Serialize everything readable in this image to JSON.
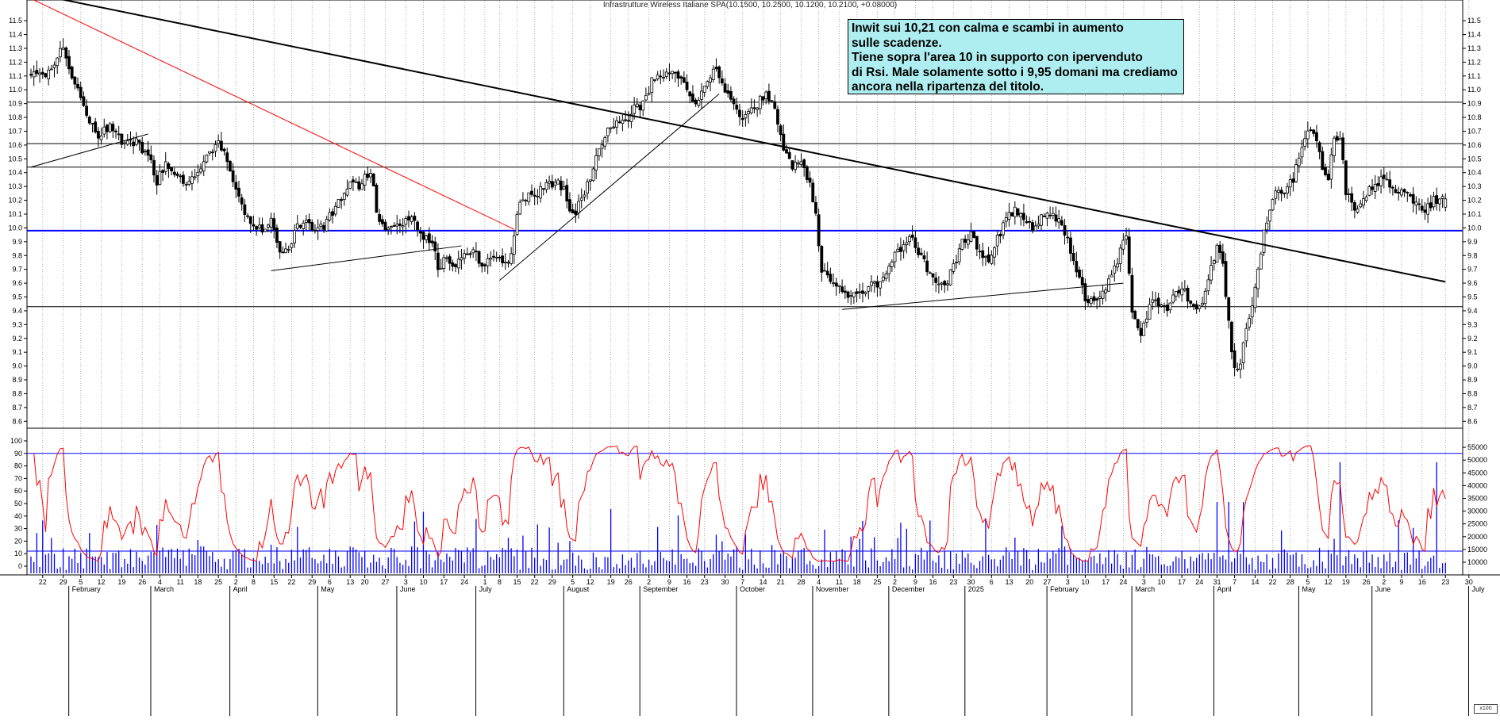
{
  "title": "Infrastrutture Wireless Italiane SPA(10.1500, 10.2500, 10.1200, 10.2100, +0.08000)",
  "annotation": {
    "lines": [
      "Inwit sui 10,21 con calma e scambi in aumento",
      "sulle scadenze.",
      "Tiene sopra l'area 10 in supporto con ipervenduto",
      "di Rsi. Male solamente sotto i 9,95 domani ma crediamo",
      "ancora nella ripartenza del titolo."
    ],
    "background": "#aeeef0"
  },
  "corner_label": "x100",
  "colors": {
    "price_bar": "#000000",
    "trendline": "#000000",
    "red_trendline": "#ff0000",
    "support_line": "#0000ff",
    "rsi": "#ff0000",
    "volume": "#0000ff",
    "grid": "#9a9a9a"
  },
  "chart_data": [
    {
      "type": "ohlc",
      "series_name": "Infrastrutture Wireless Italiane SPA",
      "ylim": [
        8.55,
        11.65
      ],
      "y_ticks": [
        "8.6",
        "8.7",
        "8.8",
        "8.9",
        "9.0",
        "9.1",
        "9.2",
        "9.3",
        "9.4",
        "9.5",
        "9.6",
        "9.7",
        "9.8",
        "9.9",
        "10.0",
        "10.1",
        "10.2",
        "10.3",
        "10.4",
        "10.5",
        "10.6",
        "10.7",
        "10.8",
        "10.9",
        "11.0",
        "11.1",
        "11.2",
        "11.3",
        "11.4",
        "11.5"
      ],
      "last_bar": {
        "open": 10.15,
        "high": 10.25,
        "low": 10.12,
        "close": 10.21,
        "change": 0.08
      },
      "horizontal_levels": [
        10.91,
        10.61,
        10.44,
        9.43
      ],
      "support_level": 9.98,
      "anchors": [
        [
          0,
          11.12
        ],
        [
          4,
          11.1
        ],
        [
          8,
          11.2
        ],
        [
          11,
          11.3
        ],
        [
          14,
          11.1
        ],
        [
          18,
          10.9
        ],
        [
          20,
          10.78
        ],
        [
          23,
          10.68
        ],
        [
          27,
          10.74
        ],
        [
          31,
          10.62
        ],
        [
          34,
          10.64
        ],
        [
          37,
          10.6
        ],
        [
          40,
          10.52
        ],
        [
          43,
          10.34
        ],
        [
          46,
          10.48
        ],
        [
          49,
          10.42
        ],
        [
          52,
          10.3
        ],
        [
          55,
          10.34
        ],
        [
          58,
          10.4
        ],
        [
          61,
          10.56
        ],
        [
          64,
          10.6
        ],
        [
          67,
          10.5
        ],
        [
          70,
          10.3
        ],
        [
          73,
          10.1
        ],
        [
          76,
          10.0
        ],
        [
          79,
          9.98
        ],
        [
          82,
          10.06
        ],
        [
          85,
          9.82
        ],
        [
          88,
          9.86
        ],
        [
          91,
          10.0
        ],
        [
          94,
          10.04
        ],
        [
          97,
          9.98
        ],
        [
          100,
          10.02
        ],
        [
          103,
          10.12
        ],
        [
          106,
          10.22
        ],
        [
          109,
          10.3
        ],
        [
          112,
          10.3
        ],
        [
          114,
          10.36
        ],
        [
          116,
          10.42
        ],
        [
          118,
          10.12
        ],
        [
          121,
          10.0
        ],
        [
          124,
          10.02
        ],
        [
          127,
          10.05
        ],
        [
          130,
          10.06
        ],
        [
          132,
          9.98
        ],
        [
          134,
          9.92
        ],
        [
          137,
          9.9
        ],
        [
          139,
          9.72
        ],
        [
          142,
          9.78
        ],
        [
          145,
          9.74
        ],
        [
          148,
          9.82
        ],
        [
          151,
          9.84
        ],
        [
          154,
          9.74
        ],
        [
          157,
          9.76
        ],
        [
          160,
          9.78
        ],
        [
          163,
          9.74
        ],
        [
          165,
          9.94
        ],
        [
          167,
          10.2
        ],
        [
          170,
          10.24
        ],
        [
          173,
          10.26
        ],
        [
          176,
          10.3
        ],
        [
          179,
          10.32
        ],
        [
          182,
          10.3
        ],
        [
          185,
          10.08
        ],
        [
          188,
          10.2
        ],
        [
          191,
          10.36
        ],
        [
          194,
          10.6
        ],
        [
          197,
          10.7
        ],
        [
          200,
          10.76
        ],
        [
          203,
          10.78
        ],
        [
          206,
          10.86
        ],
        [
          209,
          10.9
        ],
        [
          212,
          11.06
        ],
        [
          215,
          11.1
        ],
        [
          218,
          11.12
        ],
        [
          221,
          11.1
        ],
        [
          224,
          11.0
        ],
        [
          227,
          10.9
        ],
        [
          230,
          11.04
        ],
        [
          233,
          11.16
        ],
        [
          236,
          11.04
        ],
        [
          239,
          10.92
        ],
        [
          242,
          10.8
        ],
        [
          245,
          10.82
        ],
        [
          248,
          10.9
        ],
        [
          251,
          10.96
        ],
        [
          254,
          10.86
        ],
        [
          257,
          10.56
        ],
        [
          260,
          10.46
        ],
        [
          262,
          10.48
        ],
        [
          264,
          10.44
        ],
        [
          266,
          10.3
        ],
        [
          268,
          10.1
        ],
        [
          270,
          9.7
        ],
        [
          273,
          9.64
        ],
        [
          276,
          9.56
        ],
        [
          279,
          9.48
        ],
        [
          282,
          9.54
        ],
        [
          285,
          9.56
        ],
        [
          288,
          9.6
        ],
        [
          291,
          9.62
        ],
        [
          294,
          9.76
        ],
        [
          297,
          9.86
        ],
        [
          300,
          9.94
        ],
        [
          303,
          9.84
        ],
        [
          306,
          9.7
        ],
        [
          309,
          9.6
        ],
        [
          312,
          9.56
        ],
        [
          315,
          9.72
        ],
        [
          318,
          9.9
        ],
        [
          321,
          9.96
        ],
        [
          324,
          9.82
        ],
        [
          327,
          9.76
        ],
        [
          330,
          9.92
        ],
        [
          333,
          10.08
        ],
        [
          336,
          10.12
        ],
        [
          339,
          10.06
        ],
        [
          342,
          10.0
        ],
        [
          345,
          10.08
        ],
        [
          348,
          10.1
        ],
        [
          351,
          10.04
        ],
        [
          354,
          9.9
        ],
        [
          357,
          9.68
        ],
        [
          360,
          9.5
        ],
        [
          363,
          9.46
        ],
        [
          366,
          9.54
        ],
        [
          369,
          9.64
        ],
        [
          372,
          9.82
        ],
        [
          374,
          9.96
        ],
        [
          376,
          9.4
        ],
        [
          379,
          9.2
        ],
        [
          382,
          9.46
        ],
        [
          385,
          9.44
        ],
        [
          388,
          9.42
        ],
        [
          391,
          9.52
        ],
        [
          394,
          9.54
        ],
        [
          397,
          9.4
        ],
        [
          400,
          9.48
        ],
        [
          403,
          9.72
        ],
        [
          405,
          9.84
        ],
        [
          407,
          9.76
        ],
        [
          409,
          9.3
        ],
        [
          411,
          8.96
        ],
        [
          413,
          9.04
        ],
        [
          415,
          9.28
        ],
        [
          417,
          9.44
        ],
        [
          419,
          9.68
        ],
        [
          421,
          9.96
        ],
        [
          423,
          10.12
        ],
        [
          425,
          10.26
        ],
        [
          427,
          10.24
        ],
        [
          429,
          10.3
        ],
        [
          431,
          10.36
        ],
        [
          433,
          10.54
        ],
        [
          435,
          10.66
        ],
        [
          437,
          10.72
        ],
        [
          439,
          10.66
        ],
        [
          441,
          10.44
        ],
        [
          443,
          10.38
        ],
        [
          445,
          10.62
        ],
        [
          447,
          10.68
        ],
        [
          449,
          10.24
        ],
        [
          452,
          10.14
        ],
        [
          455,
          10.2
        ],
        [
          458,
          10.3
        ],
        [
          461,
          10.36
        ],
        [
          464,
          10.32
        ],
        [
          467,
          10.26
        ],
        [
          470,
          10.22
        ],
        [
          473,
          10.18
        ],
        [
          476,
          10.12
        ],
        [
          479,
          10.2
        ]
      ],
      "overlay_trendlines": [
        {
          "color": "black",
          "width": 2,
          "from": {
            "bar": 0,
            "price": 11.7
          },
          "to": {
            "bar": 483,
            "price": 9.61
          }
        },
        {
          "color": "red",
          "width": 1,
          "from": {
            "bar": 0,
            "price": 11.66
          },
          "to": {
            "bar": 165,
            "price": 9.99
          }
        },
        {
          "color": "black",
          "width": 1,
          "from": {
            "bar": 0,
            "price": 10.44
          },
          "to": {
            "bar": 40,
            "price": 10.68
          }
        },
        {
          "color": "black",
          "width": 1,
          "from": {
            "bar": 82,
            "price": 9.69
          },
          "to": {
            "bar": 147,
            "price": 9.87
          }
        },
        {
          "color": "black",
          "width": 1,
          "from": {
            "bar": 160,
            "price": 9.62
          },
          "to": {
            "bar": 235,
            "price": 10.97
          }
        },
        {
          "color": "black",
          "width": 1,
          "from": {
            "bar": 277,
            "price": 9.41
          },
          "to": {
            "bar": 373,
            "price": 9.6
          }
        }
      ],
      "seed": 137,
      "n_bars": 484
    },
    {
      "type": "line+bar",
      "series": [
        {
          "name": "RSI",
          "kind": "line"
        },
        {
          "name": "Volume",
          "kind": "bar"
        }
      ],
      "rsi_ticks": [
        "0",
        "10",
        "20",
        "30",
        "40",
        "50",
        "60",
        "70",
        "80",
        "90",
        "100"
      ],
      "rsi_bands": [
        90,
        12
      ],
      "volume_ticks": [
        "10000",
        "15000",
        "20000",
        "25000",
        "30000",
        "35000",
        "40000",
        "45000",
        "50000",
        "55000"
      ],
      "x_labels": [
        {
          "bar": 4,
          "text": "22"
        },
        {
          "bar": 11,
          "text": "29"
        },
        {
          "bar": 17,
          "text": "5"
        },
        {
          "bar": 24,
          "text": "12"
        },
        {
          "bar": 31,
          "text": "19"
        },
        {
          "bar": 38,
          "text": "26"
        },
        {
          "bar": 44,
          "text": "4"
        },
        {
          "bar": 51,
          "text": "11"
        },
        {
          "bar": 57,
          "text": "18"
        },
        {
          "bar": 64,
          "text": "25"
        },
        {
          "bar": 70,
          "text": "2"
        },
        {
          "bar": 76,
          "text": "8"
        },
        {
          "bar": 83,
          "text": "15"
        },
        {
          "bar": 89,
          "text": "22"
        },
        {
          "bar": 96,
          "text": "29"
        },
        {
          "bar": 102,
          "text": "6"
        },
        {
          "bar": 109,
          "text": "13"
        },
        {
          "bar": 114,
          "text": "20"
        },
        {
          "bar": 121,
          "text": "27"
        },
        {
          "bar": 128,
          "text": "3"
        },
        {
          "bar": 134,
          "text": "10"
        },
        {
          "bar": 141,
          "text": "17"
        },
        {
          "bar": 148,
          "text": "24"
        },
        {
          "bar": 155,
          "text": "1"
        },
        {
          "bar": 160,
          "text": "8"
        },
        {
          "bar": 166,
          "text": "15"
        },
        {
          "bar": 172,
          "text": "22"
        },
        {
          "bar": 178,
          "text": "29"
        },
        {
          "bar": 185,
          "text": "5"
        },
        {
          "bar": 191,
          "text": "12"
        },
        {
          "bar": 198,
          "text": "19"
        },
        {
          "bar": 204,
          "text": "26"
        },
        {
          "bar": 211,
          "text": "2"
        },
        {
          "bar": 218,
          "text": "9"
        },
        {
          "bar": 224,
          "text": "16"
        },
        {
          "bar": 230,
          "text": "23"
        },
        {
          "bar": 237,
          "text": "30"
        },
        {
          "bar": 243,
          "text": "7"
        },
        {
          "bar": 250,
          "text": "14"
        },
        {
          "bar": 256,
          "text": "21"
        },
        {
          "bar": 263,
          "text": "28"
        },
        {
          "bar": 269,
          "text": "4"
        },
        {
          "bar": 276,
          "text": "11"
        },
        {
          "bar": 282,
          "text": "18"
        },
        {
          "bar": 289,
          "text": "25"
        },
        {
          "bar": 295,
          "text": "2"
        },
        {
          "bar": 302,
          "text": "9"
        },
        {
          "bar": 308,
          "text": "16"
        },
        {
          "bar": 315,
          "text": "23"
        },
        {
          "bar": 321,
          "text": "30"
        },
        {
          "bar": 328,
          "text": "6"
        },
        {
          "bar": 334,
          "text": "13"
        },
        {
          "bar": 341,
          "text": "20"
        },
        {
          "bar": 347,
          "text": "27"
        },
        {
          "bar": 354,
          "text": "3"
        },
        {
          "bar": 360,
          "text": "10"
        },
        {
          "bar": 367,
          "text": "17"
        },
        {
          "bar": 373,
          "text": "24"
        },
        {
          "bar": 380,
          "text": "3"
        },
        {
          "bar": 386,
          "text": "10"
        },
        {
          "bar": 393,
          "text": "17"
        },
        {
          "bar": 399,
          "text": "24"
        },
        {
          "bar": 405,
          "text": "31"
        },
        {
          "bar": 411,
          "text": "7"
        },
        {
          "bar": 418,
          "text": "14"
        },
        {
          "bar": 424,
          "text": "22"
        },
        {
          "bar": 430,
          "text": "28"
        },
        {
          "bar": 436,
          "text": "5"
        },
        {
          "bar": 443,
          "text": "12"
        },
        {
          "bar": 449,
          "text": "19"
        },
        {
          "bar": 456,
          "text": "26"
        },
        {
          "bar": 462,
          "text": "2"
        },
        {
          "bar": 468,
          "text": "9"
        },
        {
          "bar": 475,
          "text": "16"
        },
        {
          "bar": 483,
          "text": "23"
        },
        {
          "bar": 491,
          "text": "30"
        }
      ],
      "month_labels": [
        {
          "bar": 14,
          "text": "February"
        },
        {
          "bar": 42,
          "text": "March"
        },
        {
          "bar": 69,
          "text": "April"
        },
        {
          "bar": 99,
          "text": "May"
        },
        {
          "bar": 126,
          "text": "June"
        },
        {
          "bar": 153,
          "text": "July"
        },
        {
          "bar": 183,
          "text": "August"
        },
        {
          "bar": 209,
          "text": "September"
        },
        {
          "bar": 242,
          "text": "October"
        },
        {
          "bar": 268,
          "text": "November"
        },
        {
          "bar": 294,
          "text": "December"
        },
        {
          "bar": 320,
          "text": "2025"
        },
        {
          "bar": 348,
          "text": "February"
        },
        {
          "bar": 377,
          "text": "March"
        },
        {
          "bar": 405,
          "text": "April"
        },
        {
          "bar": 434,
          "text": "May"
        },
        {
          "bar": 459,
          "text": "June"
        },
        {
          "bar": 492,
          "text": "July"
        }
      ]
    }
  ]
}
